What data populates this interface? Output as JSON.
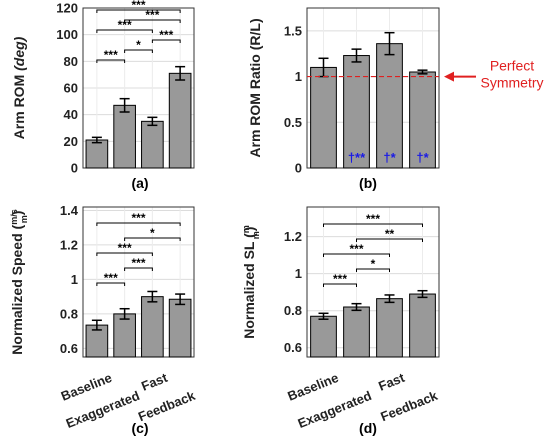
{
  "chart_data": [
    {
      "type": "bar",
      "panel_label": "(a)",
      "categories": [
        "Baseline",
        "Exaggerated",
        "Fast",
        "Feedback"
      ],
      "values": [
        21,
        47,
        35,
        71
      ],
      "errors": [
        2,
        5,
        3,
        5
      ],
      "ylabel_plain": "Arm ROM ",
      "ylabel_unit": "(deg)",
      "ylim": [
        0,
        120
      ],
      "yticks": [
        "0",
        "20",
        "40",
        "60",
        "80",
        "100",
        "120"
      ],
      "grid": true,
      "significance": [
        {
          "from": 0,
          "to": 3,
          "label": "***"
        },
        {
          "from": 1,
          "to": 3,
          "label": "***"
        },
        {
          "from": 0,
          "to": 2,
          "label": "***"
        },
        {
          "from": 2,
          "to": 3,
          "label": "***"
        },
        {
          "from": 1,
          "to": 2,
          "label": "*"
        },
        {
          "from": 0,
          "to": 1,
          "label": "***"
        }
      ]
    },
    {
      "type": "bar",
      "panel_label": "(b)",
      "categories": [
        "Baseline",
        "Exaggerated",
        "Fast",
        "Feedback"
      ],
      "values": [
        1.1,
        1.23,
        1.36,
        1.05
      ],
      "errors": [
        0.1,
        0.07,
        0.12,
        0.02
      ],
      "ylabel_plain": "Arm ROM Ratio (R/L)",
      "ylim": [
        0,
        1.75
      ],
      "yticks": [
        "0",
        "0.5",
        "1",
        "1.5"
      ],
      "grid": true,
      "reference_line": 1,
      "reference_label": "Perfect Symmetry",
      "bar_annotations": [
        "",
        "†**",
        "†*",
        "†*"
      ]
    },
    {
      "type": "bar",
      "panel_label": "(c)",
      "categories": [
        "Baseline",
        "Exaggerated",
        "Fast",
        "Feedback"
      ],
      "values": [
        0.735,
        0.8,
        0.9,
        0.885
      ],
      "errors": [
        0.028,
        0.03,
        0.03,
        0.03
      ],
      "ylabel_plain": "Normalized Speed ",
      "ylabel_frac_num": "m/s",
      "ylabel_frac_den": "m",
      "ylim": [
        0.55,
        1.42
      ],
      "yticks": [
        "0.6",
        "0.8",
        "1",
        "1.2",
        "1.4"
      ],
      "grid": true,
      "significance": [
        {
          "from": 0,
          "to": 3,
          "label": "***"
        },
        {
          "from": 1,
          "to": 3,
          "label": "*"
        },
        {
          "from": 0,
          "to": 2,
          "label": "***"
        },
        {
          "from": 1,
          "to": 2,
          "label": "***"
        },
        {
          "from": 0,
          "to": 1,
          "label": "***"
        }
      ]
    },
    {
      "type": "bar",
      "panel_label": "(d)",
      "categories": [
        "Baseline",
        "Exaggerated",
        "Fast",
        "Feedback"
      ],
      "values": [
        0.77,
        0.82,
        0.865,
        0.89
      ],
      "errors": [
        0.016,
        0.018,
        0.02,
        0.018
      ],
      "ylabel_plain": "Normalized SL ",
      "ylabel_frac_num": "m",
      "ylabel_frac_den": "m",
      "ylim": [
        0.55,
        1.36
      ],
      "yticks": [
        "0.6",
        "0.8",
        "1",
        "1.2"
      ],
      "grid": true,
      "significance": [
        {
          "from": 0,
          "to": 3,
          "label": "***"
        },
        {
          "from": 1,
          "to": 3,
          "label": "**"
        },
        {
          "from": 0,
          "to": 2,
          "label": "***"
        },
        {
          "from": 1,
          "to": 2,
          "label": "*"
        },
        {
          "from": 0,
          "to": 1,
          "label": "***"
        }
      ]
    }
  ]
}
